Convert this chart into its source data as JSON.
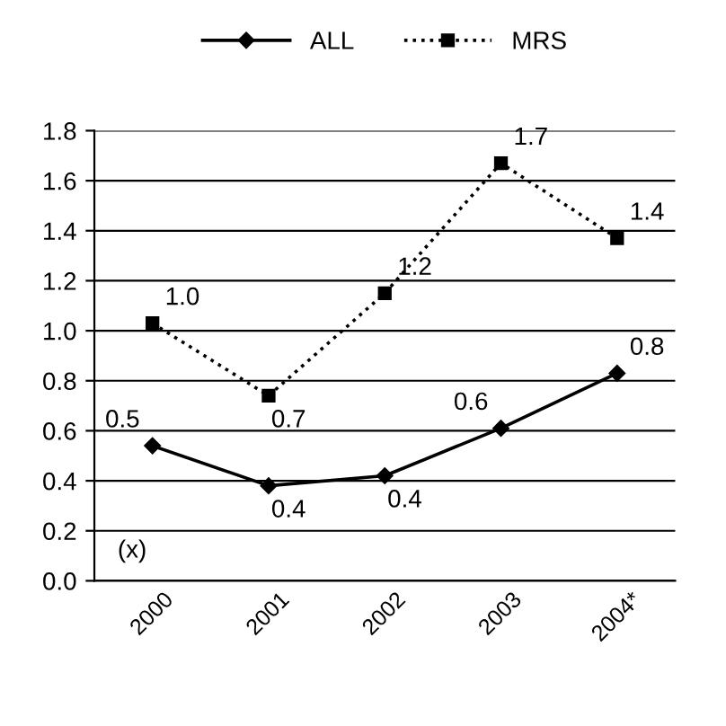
{
  "chart_data": {
    "type": "line",
    "categories": [
      "2000",
      "2001",
      "2002",
      "2003",
      "2004*"
    ],
    "series": [
      {
        "name": "ALL",
        "color": "#000000",
        "values": [
          0.54,
          0.38,
          0.42,
          0.61,
          0.83
        ],
        "value_labels": [
          "0.5",
          "0.4",
          "0.4",
          "0.6",
          "0.8"
        ],
        "marker": "diamond",
        "line_style": "solid"
      },
      {
        "name": "MRS",
        "color": "#000000",
        "values": [
          1.03,
          0.74,
          1.15,
          1.67,
          1.37
        ],
        "value_labels": [
          "1.0",
          "0.7",
          "1.2",
          "1.7",
          "1.4"
        ],
        "marker": "square",
        "line_style": "dotted"
      }
    ],
    "ylim": [
      0,
      1.8
    ],
    "yticks": [
      {
        "value": 0,
        "label": "0.0"
      },
      0.2,
      0.4,
      0.6,
      0.8,
      {
        "value": 1,
        "label": "1.0"
      },
      1.2,
      1.4,
      1.6,
      1.8
    ],
    "grid": "y",
    "legend": "top",
    "annotations": [
      "(x)"
    ]
  }
}
